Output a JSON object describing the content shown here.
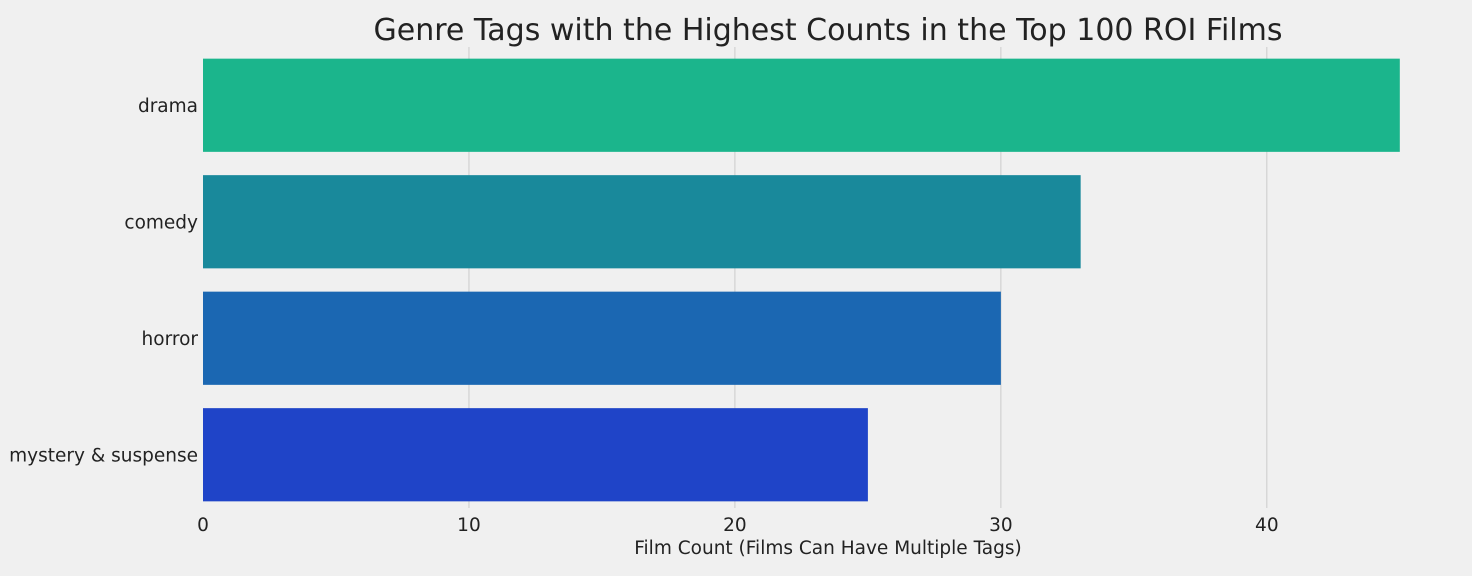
{
  "chart_data": {
    "type": "bar",
    "orientation": "horizontal",
    "title": "Genre Tags with the Highest Counts in the Top 100 ROI Films",
    "xlabel": "Film Count (Films Can Have Multiple Tags)",
    "ylabel": "",
    "categories": [
      "drama",
      "comedy",
      "horror",
      "mystery & suspense"
    ],
    "values": [
      45,
      33,
      30,
      25
    ],
    "colors": [
      "#1bb58c",
      "#19899b",
      "#1b67b2",
      "#1f44c8"
    ],
    "xlim": [
      0,
      47
    ],
    "xticks": [
      0,
      10,
      20,
      30,
      40
    ],
    "grid": "vertical",
    "background": "#f0f0f0"
  }
}
